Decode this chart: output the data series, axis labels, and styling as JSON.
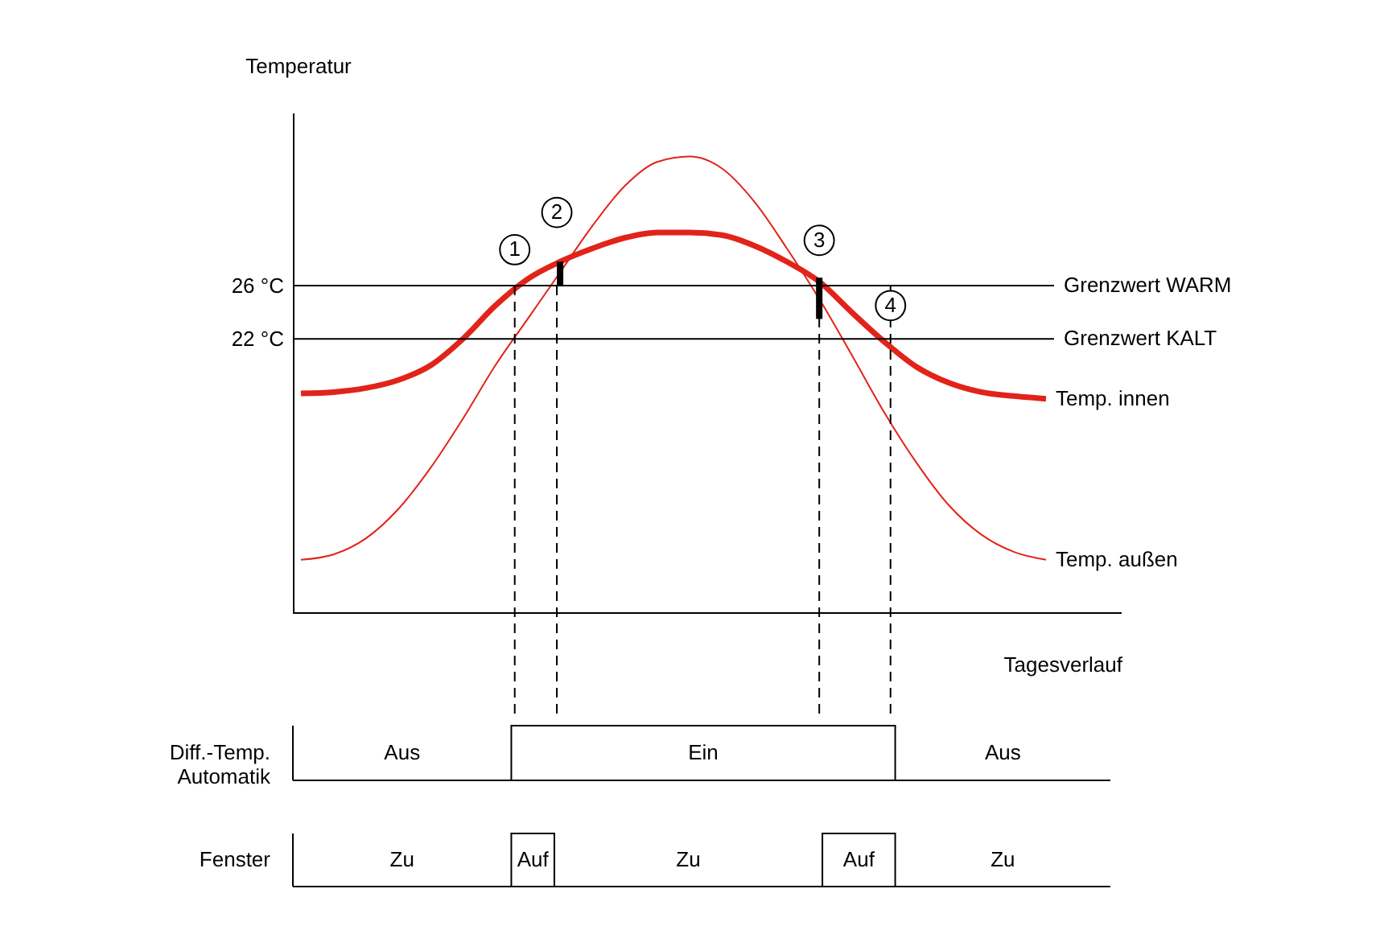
{
  "chart_data": {
    "type": "line",
    "ylabel": "Temperatur",
    "xlabel": "Tagesverlauf",
    "categories": [
      null,
      null,
      null,
      null,
      null,
      null,
      null,
      null,
      null,
      null,
      null,
      null,
      null,
      null,
      null,
      null,
      null,
      null,
      null,
      null,
      null,
      null,
      null,
      null
    ],
    "ylim": [
      1.4,
      39
    ],
    "yticks": [
      {
        "value": 22,
        "label": "22 °C"
      },
      {
        "value": 26,
        "label": "26 °C"
      }
    ],
    "tick_labels": "y",
    "grid": false,
    "legend": false,
    "marker": "none",
    "line_style": "solid",
    "series": [
      {
        "name": "Temp. innen",
        "color": "#e2231a",
        "values": [
          17.9,
          18,
          18.3,
          18.9,
          20,
          22,
          24.5,
          26.5,
          27.8,
          28.8,
          29.6,
          30,
          30,
          29.8,
          29,
          27.8,
          26.3,
          24,
          21.8,
          19.9,
          18.7,
          18,
          17.7,
          17.5
        ]
      },
      {
        "name": "Temp. außen",
        "color": "#e2231a",
        "values": [
          5.4,
          5.8,
          7,
          9.2,
          12.3,
          16,
          20,
          23.5,
          27,
          30.5,
          33.5,
          35.3,
          35.7,
          34.8,
          32.3,
          28.8,
          25,
          20.8,
          16.5,
          12.7,
          9.5,
          7.3,
          6,
          5.4
        ]
      },
      {
        "type": "bar",
        "color": "#000000",
        "base": [
          null,
          null,
          null,
          null,
          null,
          null,
          null,
          null,
          26,
          null,
          null,
          null,
          null,
          null,
          null,
          null,
          23.5,
          null,
          null,
          null,
          null,
          null,
          null,
          null
        ],
        "values": [
          null,
          null,
          null,
          null,
          null,
          null,
          null,
          null,
          1.8,
          null,
          null,
          null,
          null,
          null,
          null,
          null,
          3.1,
          null,
          null,
          null,
          null,
          null,
          null,
          null
        ]
      }
    ],
    "ref_lines": [
      {
        "axis": "y",
        "value": 26,
        "label": "Grenzwert WARM",
        "color": "#000000"
      },
      {
        "axis": "y",
        "value": 22,
        "label": "Grenzwert KALT",
        "color": "#000000"
      }
    ],
    "annotations": [
      {
        "text": "1",
        "y": 28.7
      },
      {
        "text": "2",
        "y": 31.5
      },
      {
        "text": "3",
        "y": 29.4
      },
      {
        "text": "4",
        "y": 24.5
      },
      "Diff.-Temp. Automatik",
      "Aus",
      "Ein",
      "Aus",
      "Fenster",
      "Zu",
      "Auf",
      "Zu",
      "Auf",
      "Zu"
    ]
  }
}
